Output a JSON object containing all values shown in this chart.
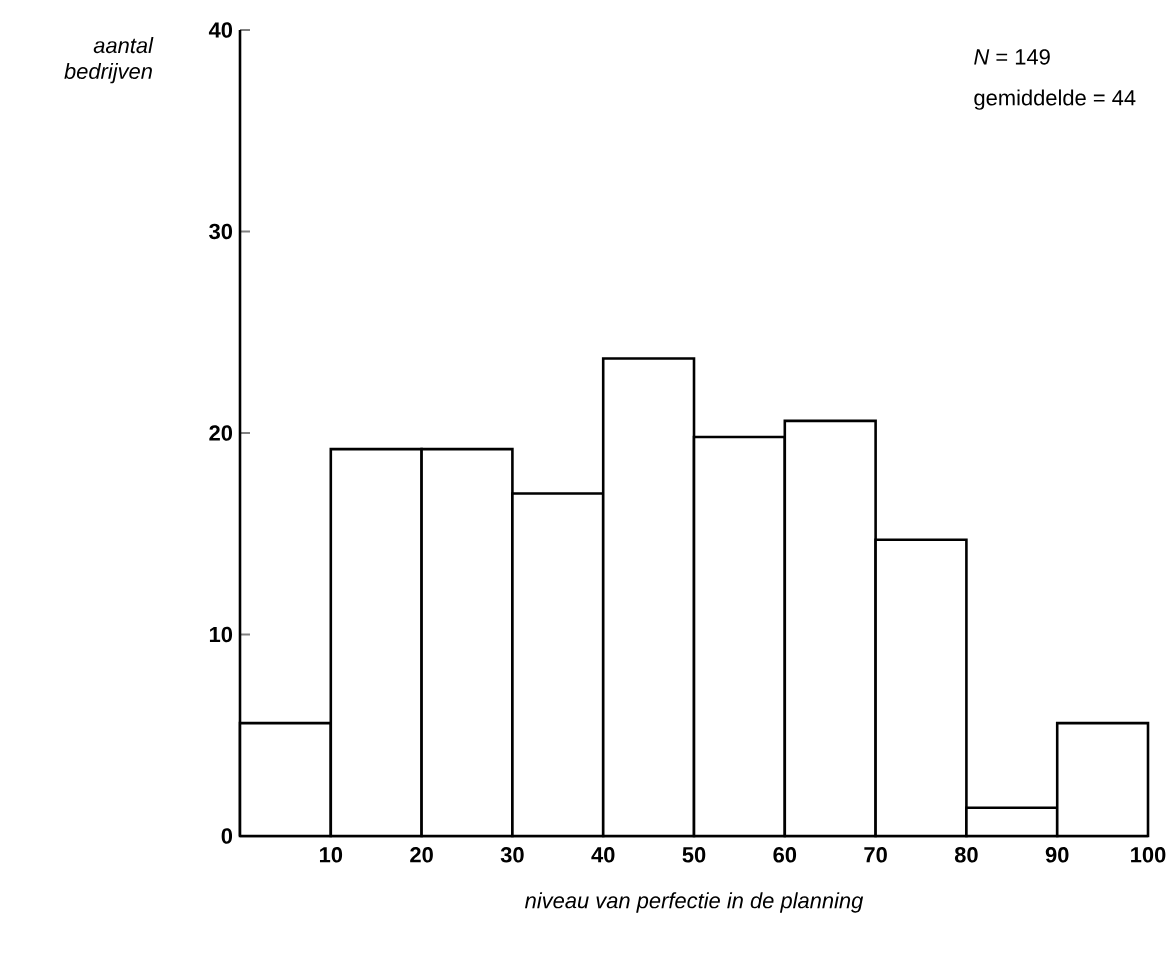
{
  "chart_data": {
    "type": "histogram",
    "xlabel": "niveau van perfectie in de planning",
    "ylabel": "aantal bedrijven",
    "bins": [
      0,
      10,
      20,
      30,
      40,
      50,
      60,
      70,
      80,
      90,
      100
    ],
    "values": [
      5.6,
      19.2,
      19.2,
      17,
      23.7,
      19.8,
      20.6,
      14.7,
      1.4,
      5.6
    ],
    "xlim": [
      0,
      100
    ],
    "xticks": [
      10,
      20,
      30,
      40,
      50,
      60,
      70,
      80,
      90,
      100
    ],
    "ylim": [
      0,
      40
    ],
    "yticks": [
      0,
      10,
      20,
      30,
      40
    ],
    "annotations": [
      "*N* = 149",
      "gemiddelde = 44"
    ]
  }
}
